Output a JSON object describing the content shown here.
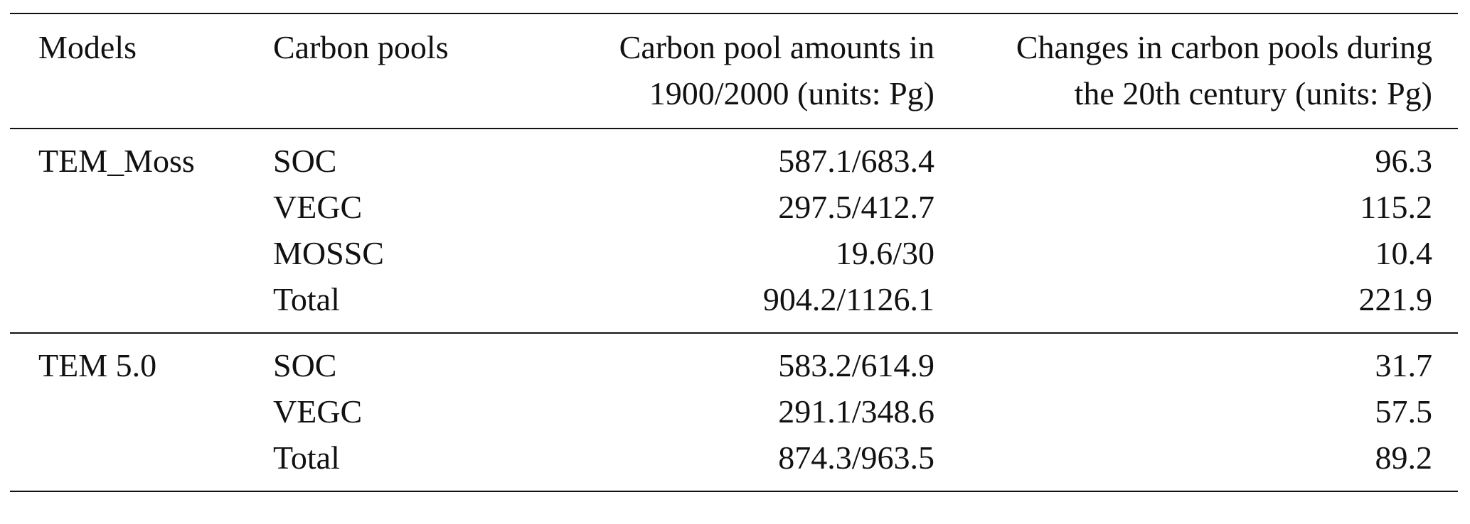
{
  "table": {
    "headers": {
      "models": "Models",
      "pools": "Carbon pools",
      "amounts": [
        "Carbon pool amounts in",
        "1900/2000 (units: Pg)"
      ],
      "changes": [
        "Changes in carbon pools during",
        "the 20th century (units: Pg)"
      ]
    },
    "groups": [
      {
        "model": "TEM_Moss",
        "rows": [
          {
            "pool": "SOC",
            "amount": "587.1/683.4",
            "change": "96.3"
          },
          {
            "pool": "VEGC",
            "amount": "297.5/412.7",
            "change": "115.2"
          },
          {
            "pool": "MOSSC",
            "amount": "19.6/30",
            "change": "10.4"
          },
          {
            "pool": "Total",
            "amount": "904.2/1126.1",
            "change": "221.9"
          }
        ]
      },
      {
        "model": "TEM 5.0",
        "rows": [
          {
            "pool": "SOC",
            "amount": "583.2/614.9",
            "change": "31.7"
          },
          {
            "pool": "VEGC",
            "amount": "291.1/348.6",
            "change": "57.5"
          },
          {
            "pool": "Total",
            "amount": "874.3/963.5",
            "change": "89.2"
          }
        ]
      }
    ]
  }
}
